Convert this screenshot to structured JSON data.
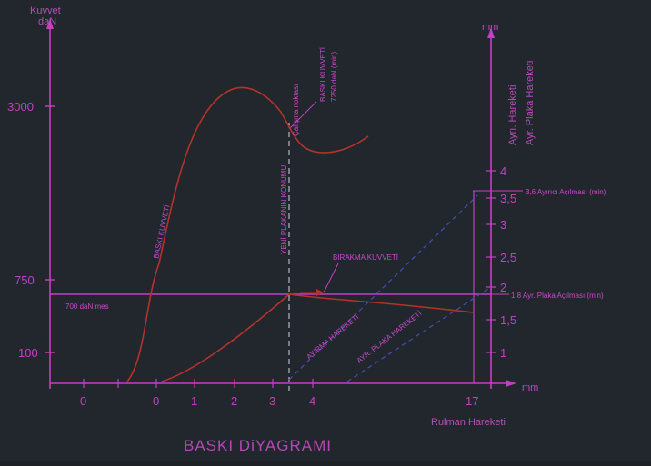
{
  "diagram": {
    "title": "BASKI DiYAGRAMI",
    "left_axis": {
      "title_line1": "Kuvvet",
      "title_line2": "daN",
      "ticks": [
        "3000",
        "750",
        "100"
      ]
    },
    "right_axis": {
      "unit": "mm",
      "title_a": "Ayrı. Hareketi",
      "title_b": "Ayr. Plaka Hareketi",
      "ticks": [
        "1",
        "1,5",
        "2",
        "2,5",
        "3",
        "3,5",
        "4"
      ]
    },
    "x_axis": {
      "ticks": [
        "0",
        "0",
        "1",
        "2",
        "3",
        "4",
        "17"
      ],
      "unit": "mm",
      "label": "Rulman Hareketi"
    },
    "annotations": {
      "max_force_line1": "BASKI KUVVETİ",
      "max_force_line2": "7250 daN (min)",
      "point_label": "Çalışma noktası",
      "vertical_note": "YENİ PLAKANIN KONUMU",
      "curve_label": "BASKI KUVVETİ",
      "release_force": "BIRAKMA KUVVETİ",
      "min_force": "700 daN mes",
      "release_travel": "3,6 Ayırıcı Açılması (min)",
      "plate_travel": "1,8 Ayr. Plaka Açılması (min)",
      "line_a": "AYIRMA HAREKETİ",
      "line_b": "AYR. PLAKA HAREKETİ"
    }
  },
  "colors": {
    "background": "#22272d",
    "axes": "#c43fc4",
    "curve": "#b3332a",
    "dashed": "#3f4fb8"
  }
}
